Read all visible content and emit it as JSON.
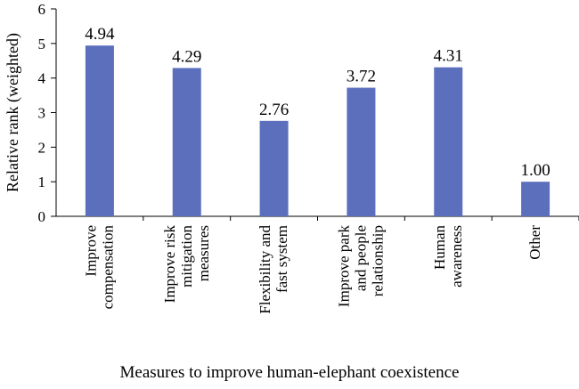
{
  "chart_data": {
    "type": "bar",
    "categories": [
      [
        "Improve",
        "compensation"
      ],
      [
        "Improve risk",
        "mitigation",
        "measures"
      ],
      [
        "Flexibility and",
        "fast system"
      ],
      [
        "Improve park",
        "and people",
        "relationship"
      ],
      [
        "Human",
        "awareness"
      ],
      [
        "Other"
      ]
    ],
    "values": [
      4.94,
      4.29,
      2.76,
      3.72,
      4.31,
      1.0
    ],
    "value_labels": [
      "4.94",
      "4.29",
      "2.76",
      "3.72",
      "4.31",
      "1.00"
    ],
    "xlabel": "Measures to improve human-elephant coexistence",
    "ylabel": "Relative rank (weighted)",
    "ylim": [
      0,
      6
    ],
    "yticks": [
      0,
      1,
      2,
      3,
      4,
      5,
      6
    ],
    "bar_color": "#5b6fbd",
    "grid": false,
    "legend": "none"
  }
}
